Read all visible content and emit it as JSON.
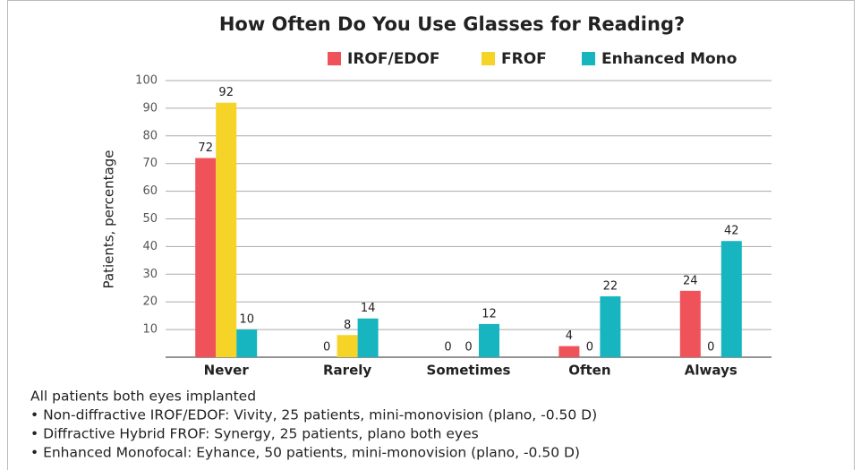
{
  "chart_data": {
    "type": "bar",
    "title": "How Often Do You Use Glasses for Reading?",
    "y_label": "Patients, percentage",
    "categories": [
      "Never",
      "Rarely",
      "Sometimes",
      "Often",
      "Always"
    ],
    "series": [
      {
        "name": "IROF/EDOF",
        "color": "#f0525a",
        "values": [
          72,
          0,
          0,
          4,
          24
        ]
      },
      {
        "name": "FROF",
        "color": "#f5d327",
        "values": [
          92,
          8,
          0,
          0,
          0
        ]
      },
      {
        "name": "Enhanced Mono",
        "color": "#17b5bf",
        "values": [
          10,
          14,
          12,
          22,
          42
        ]
      }
    ],
    "ylim": [
      0,
      100
    ],
    "yticks": [
      10,
      20,
      30,
      40,
      50,
      60,
      70,
      80,
      90,
      100
    ],
    "grid": true,
    "legend": "top-right",
    "notes": [
      "All patients both eyes implanted",
      "• Non-diffractive IROF/EDOF: Vivity, 25 patients, mini-monovision (plano, -0.50 D)",
      "• Diffractive Hybrid FROF: Synergy, 25 patients, plano both eyes",
      "• Enhanced Monofocal: Eyhance, 50 patients, mini-monovision (plano, -0.50 D)"
    ]
  }
}
